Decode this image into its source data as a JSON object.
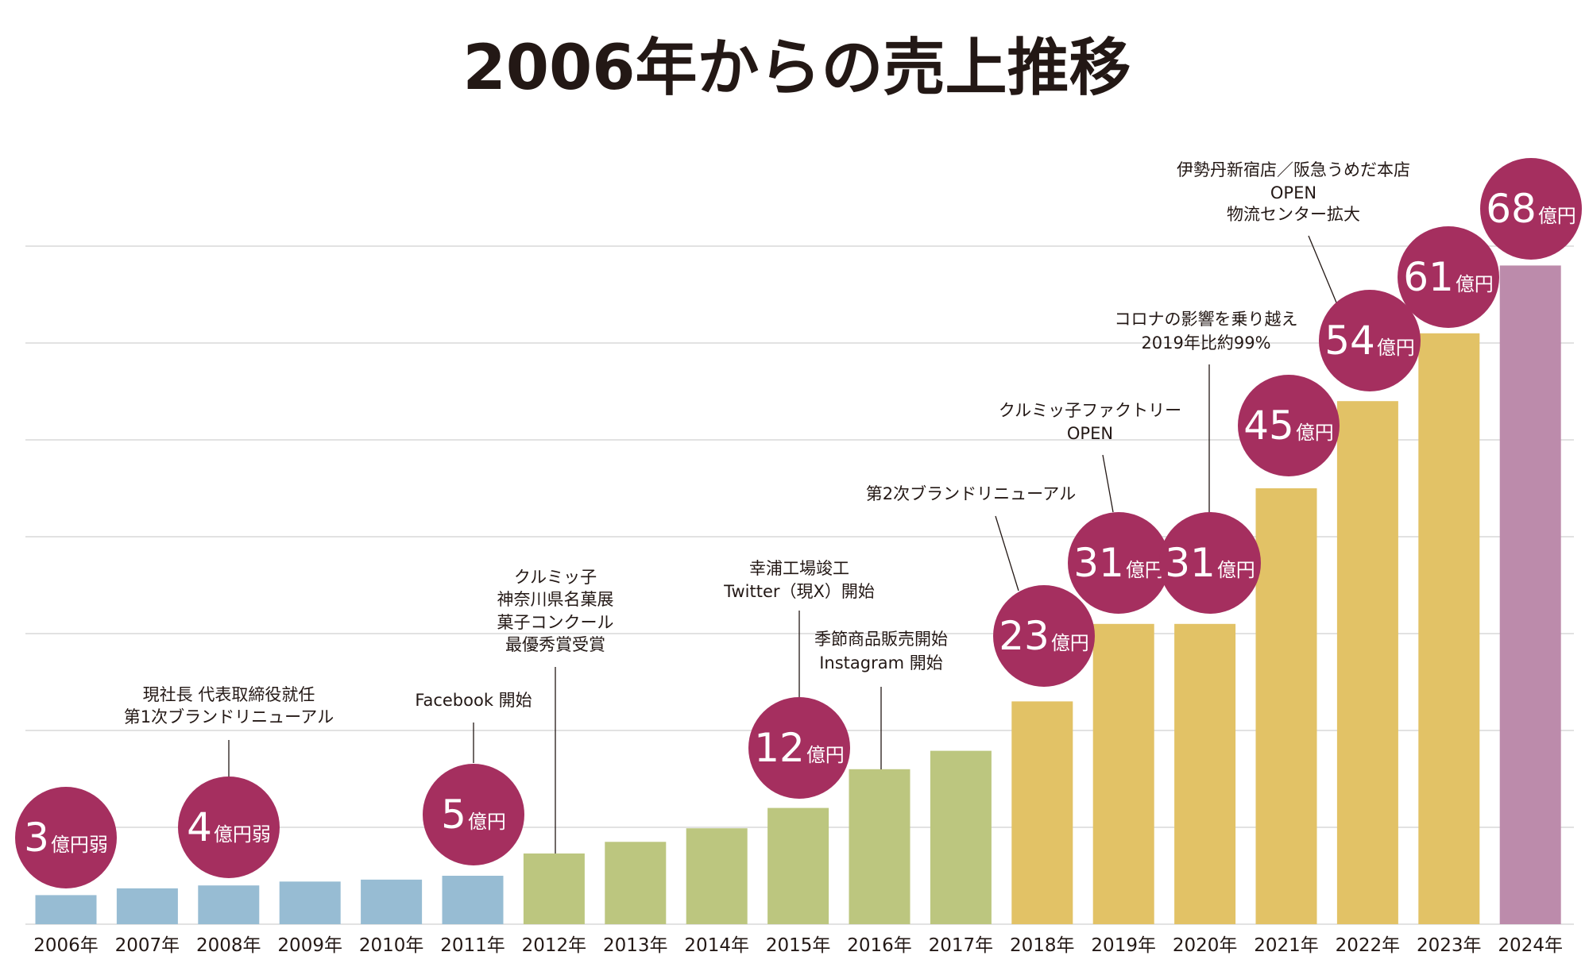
{
  "chart_data": {
    "type": "bar",
    "title": "2006年からの売上推移",
    "xlabel": "",
    "ylabel": "",
    "unit": "億円",
    "ylim": [
      0,
      70
    ],
    "grid": true,
    "grid_step": 10,
    "categories": [
      "2006年",
      "2007年",
      "2008年",
      "2009年",
      "2010年",
      "2011年",
      "2012年",
      "2013年",
      "2014年",
      "2015年",
      "2016年",
      "2017年",
      "2018年",
      "2019年",
      "2020年",
      "2021年",
      "2022年",
      "2023年",
      "2024年"
    ],
    "values": [
      3,
      3.7,
      4,
      4.4,
      4.6,
      5,
      7.3,
      8.5,
      9.9,
      12,
      16,
      17.9,
      23,
      31,
      31,
      45,
      54,
      61,
      68
    ],
    "bar_colors": [
      "#97bcd3",
      "#97bcd3",
      "#97bcd3",
      "#97bcd3",
      "#97bcd3",
      "#97bcd3",
      "#bcc67f",
      "#bcc67f",
      "#bcc67f",
      "#bcc67f",
      "#bcc67f",
      "#bcc67f",
      "#e2c266",
      "#e2c266",
      "#e2c266",
      "#e2c266",
      "#e2c266",
      "#e2c266",
      "#bc8bab"
    ],
    "bubble_color": "#a52f5f",
    "bubbles": [
      {
        "year": "2006年",
        "num": "3",
        "suffix": "億円弱"
      },
      {
        "year": "2008年",
        "num": "4",
        "suffix": "億円弱"
      },
      {
        "year": "2011年",
        "num": "5",
        "suffix": "億円"
      },
      {
        "year": "2015年",
        "num": "12",
        "suffix": "億円"
      },
      {
        "year": "2018年",
        "num": "23",
        "suffix": "億円"
      },
      {
        "year": "2019年",
        "num": "31",
        "suffix": "億円"
      },
      {
        "year": "2020年",
        "num": "31",
        "suffix": "億円"
      },
      {
        "year": "2021年",
        "num": "45",
        "suffix": "億円"
      },
      {
        "year": "2022年",
        "num": "54",
        "suffix": "億円"
      },
      {
        "year": "2023年",
        "num": "61",
        "suffix": "億円"
      },
      {
        "year": "2024年",
        "num": "68",
        "suffix": "億円"
      }
    ],
    "annotations": [
      {
        "year": "2008年",
        "lines": [
          "現社長 代表取締役就任",
          "第1次ブランドリニューアル"
        ]
      },
      {
        "year": "2011年",
        "lines": [
          "Facebook 開始"
        ]
      },
      {
        "year": "2012年",
        "lines": [
          "クルミッ子",
          "神奈川県名菓展",
          "菓子コンクール",
          "最優秀賞受賞"
        ]
      },
      {
        "year": "2015年",
        "lines": [
          "幸浦工場竣工",
          "Twitter（現X）開始"
        ]
      },
      {
        "year": "2016年",
        "lines": [
          "季節商品販売開始",
          "Instagram 開始"
        ]
      },
      {
        "year": "2018年",
        "lines": [
          "第2次ブランドリニューアル"
        ]
      },
      {
        "year": "2019年",
        "lines": [
          "クルミッ子ファクトリー",
          "OPEN"
        ]
      },
      {
        "year": "2020年",
        "lines": [
          "コロナの影響を乗り越え",
          "2019年比約99%"
        ]
      },
      {
        "year": "2022年",
        "lines": [
          "伊勢丹新宿店／阪急うめだ本店",
          "OPEN",
          "物流センター拡大"
        ]
      }
    ]
  }
}
